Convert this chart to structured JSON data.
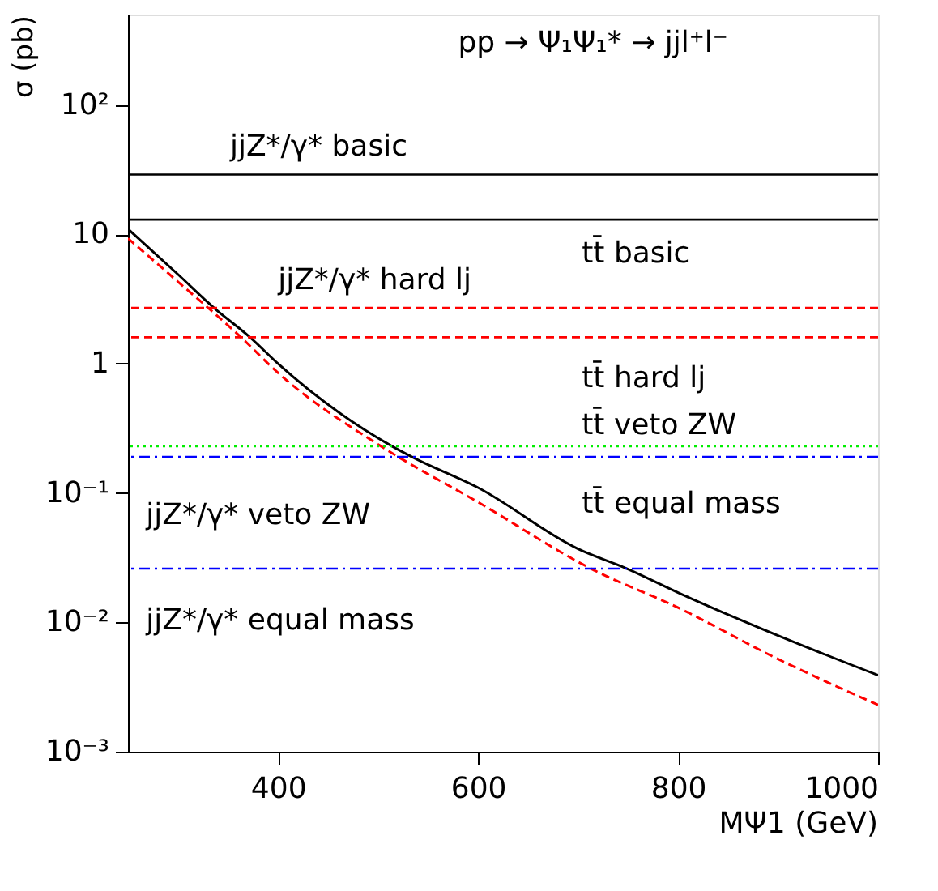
{
  "chart_data": {
    "type": "line",
    "title": "pp → Ψ₁Ψ₁* → jjl⁺l⁻",
    "xlabel": "MΨ1 (GeV)",
    "ylabel": "σ (pb)",
    "log": "y",
    "xlim": [
      250,
      1000
    ],
    "xticks": [
      400,
      600,
      800,
      1000
    ],
    "ylim": [
      0.001,
      500
    ],
    "yticks": [
      {
        "value": 100,
        "label": "10²"
      },
      10,
      1,
      {
        "value": 0.1,
        "label": "10⁻¹"
      },
      {
        "value": 0.01,
        "label": "10⁻²"
      },
      {
        "value": 0.001,
        "label": "10⁻³"
      }
    ],
    "grid": false,
    "marker": "none",
    "series": [
      {
        "color": "#000000",
        "line_style": "solid",
        "x": [
          250,
          300,
          336,
          372,
          400,
          514,
          534,
          600,
          700,
          749,
          800,
          900,
          1000
        ],
        "values": [
          11,
          4.9,
          2.7,
          1.6,
          1.0,
          0.23,
          0.19,
          0.11,
          0.037,
          0.026,
          0.017,
          0.0079,
          0.0039
        ]
      },
      {
        "color": "#ff0000",
        "line_style": "dashed",
        "x": [
          250,
          300,
          363,
          400,
          503,
          600,
          713,
          800,
          900,
          1000
        ],
        "values": [
          9.3,
          4.3,
          1.6,
          0.85,
          0.23,
          0.085,
          0.026,
          0.013,
          0.0052,
          0.0023
        ]
      }
    ],
    "ref_lines": [
      {
        "axis": "y",
        "value": 29,
        "color": "#000000",
        "line_style": "solid"
      },
      {
        "axis": "y",
        "value": 13,
        "color": "#000000",
        "line_style": "solid"
      },
      {
        "axis": "y",
        "value": 2.7,
        "color": "#ff0000",
        "line_style": "dashed"
      },
      {
        "axis": "y",
        "value": 1.6,
        "color": "#ff0000",
        "line_style": "dashed"
      },
      {
        "axis": "y",
        "value": 0.23,
        "color": "#00ee00",
        "line_style": "dotted"
      },
      {
        "axis": "y",
        "value": 0.19,
        "color": "#0000ff",
        "line_style": "dashdot"
      },
      {
        "axis": "y",
        "value": 0.026,
        "color": "#0000ff",
        "line_style": "dashdot"
      }
    ],
    "annotations": [
      "jjZ*/γ* basic",
      "tt̄  basic",
      "jjZ*/γ* hard lj",
      "tt̄  hard lj",
      "tt̄  veto ZW",
      "jjZ*/γ* veto ZW",
      "tt̄  equal mass",
      "jjZ*/γ* equal mass"
    ]
  }
}
